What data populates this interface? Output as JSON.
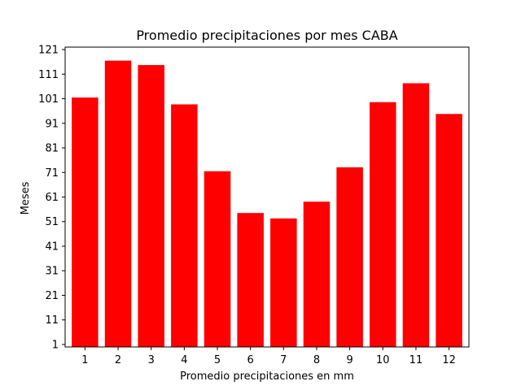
{
  "chart_data": {
    "type": "bar",
    "title": "Promedio precipitaciones por mes CABA",
    "xlabel": "Promedio precipitaciones en mm",
    "ylabel": "Meses",
    "categories": [
      "1",
      "2",
      "3",
      "4",
      "5",
      "6",
      "7",
      "8",
      "9",
      "10",
      "11",
      "12"
    ],
    "values": [
      101.5,
      116.5,
      114.7,
      98.7,
      71.5,
      54.5,
      52.3,
      59.1,
      73.1,
      99.6,
      107.3,
      94.8
    ],
    "ylim": [
      0,
      122
    ],
    "yticks": [
      1,
      11,
      21,
      31,
      41,
      51,
      61,
      71,
      81,
      91,
      101,
      111,
      121
    ],
    "bar_color": "#ff0000",
    "grid": false,
    "legend": "none"
  }
}
